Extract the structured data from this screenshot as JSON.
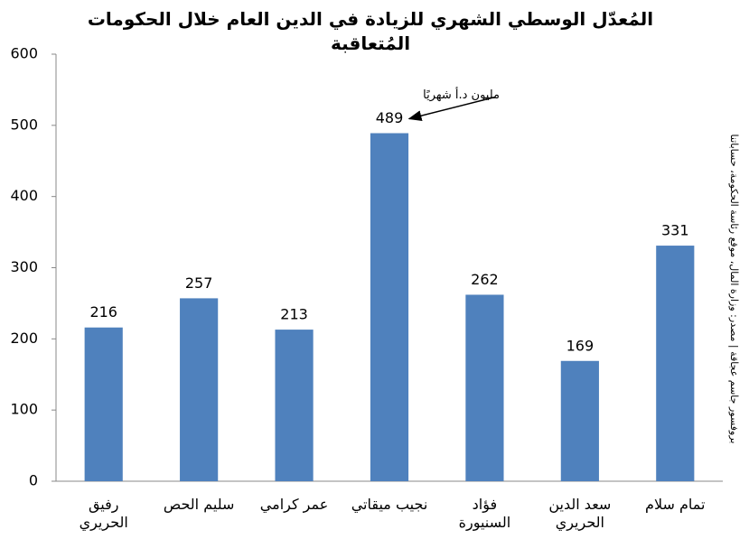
{
  "chart_data": {
    "type": "bar",
    "title": "المُعدّل الوسطي الشهري للزيادة في الدين العام خلال الحكومات المُتعاقبة",
    "annotation": "مليون د.أ شهريًا",
    "source": "بروفسور جاسم عجاقة | مصدر: وزارة المال، موقع رئاسة الحكومة، حساباتنا",
    "categories": [
      "رفيق الحريري",
      "سليم الحص",
      "عمر كرامي",
      "نجيب ميقاتي",
      "فؤاد السنيورة",
      "سعد الدين الحريري",
      "تمام سلام"
    ],
    "values": [
      216,
      257,
      213,
      489,
      262,
      169,
      331
    ],
    "color": "#4f81bd",
    "ylim": [
      0,
      600
    ],
    "yticks": [
      0,
      100,
      200,
      300,
      400,
      500,
      600
    ],
    "grid": false
  }
}
